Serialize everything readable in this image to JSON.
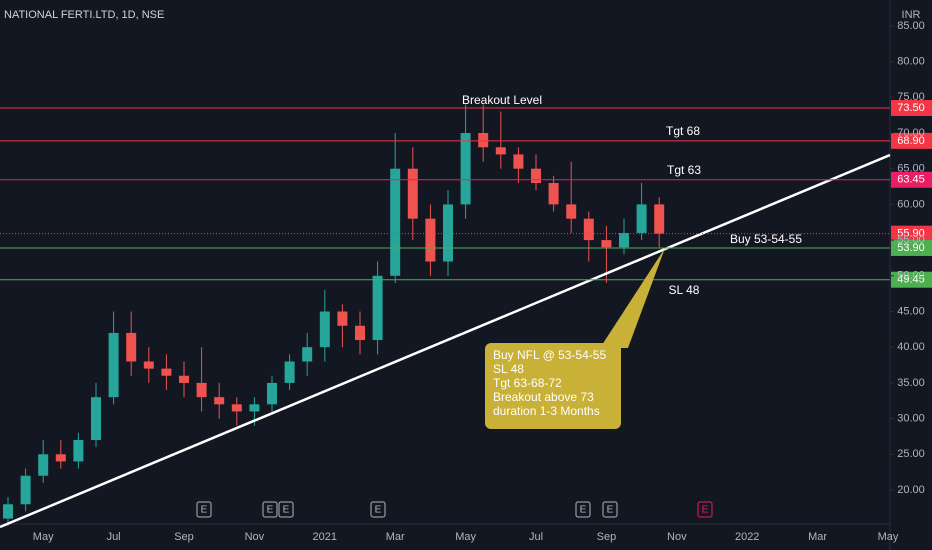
{
  "chart_data": {
    "type": "candlestick",
    "title": "NATIONAL FERTI.LTD, 1D, NSE",
    "currency": "INR",
    "categories": [
      null,
      null,
      "May",
      null,
      null,
      null,
      "Jul",
      null,
      null,
      null,
      "Sep",
      null,
      null,
      null,
      "Nov",
      null,
      null,
      null,
      "2021",
      null,
      null,
      null,
      "Mar",
      null,
      null,
      null,
      "May",
      null,
      null,
      null,
      "Jul",
      null,
      null,
      null,
      "Sep",
      null,
      null,
      null,
      "Nov",
      null,
      null,
      null,
      "2022",
      null,
      null,
      null,
      "Mar",
      null,
      null,
      null,
      "May",
      null
    ],
    "open": [
      16,
      18,
      22,
      25,
      24,
      27,
      33,
      42,
      38,
      37,
      36,
      35,
      33,
      32,
      31,
      32,
      35,
      38,
      40,
      45,
      43,
      41,
      50,
      65,
      58,
      52,
      60,
      70,
      68,
      67,
      65,
      63,
      60,
      58,
      55,
      54,
      56,
      60,
      null,
      null,
      null,
      null,
      null,
      null,
      null,
      null,
      null,
      null,
      null,
      null,
      null,
      null
    ],
    "high": [
      19,
      23,
      27,
      27,
      28,
      35,
      45,
      45,
      40,
      39,
      38,
      40,
      35,
      33,
      33,
      36,
      39,
      42,
      48,
      46,
      45,
      52,
      70,
      68,
      60,
      62,
      74,
      74,
      73,
      68,
      67,
      64,
      66,
      59,
      57,
      58,
      63,
      61,
      null,
      null,
      null,
      null,
      null,
      null,
      null,
      null,
      null,
      null,
      null,
      null,
      null,
      null
    ],
    "low": [
      15,
      17,
      21,
      23,
      23,
      26,
      32,
      36,
      35,
      34,
      33,
      31,
      30,
      29,
      29,
      31,
      34,
      36,
      38,
      40,
      39,
      39,
      49,
      55,
      50,
      50,
      58,
      66,
      65,
      63,
      62,
      59,
      56,
      52,
      49,
      53,
      55,
      54,
      null,
      null,
      null,
      null,
      null,
      null,
      null,
      null,
      null,
      null,
      null,
      null,
      null,
      null
    ],
    "close": [
      18,
      22,
      25,
      24,
      27,
      33,
      42,
      38,
      37,
      36,
      35,
      33,
      32,
      31,
      32,
      35,
      38,
      40,
      45,
      43,
      41,
      50,
      65,
      58,
      52,
      60,
      70,
      68,
      67,
      65,
      63,
      60,
      58,
      55,
      54,
      56,
      60,
      55.9,
      null,
      null,
      null,
      null,
      null,
      null,
      null,
      null,
      null,
      null,
      null,
      null,
      null,
      null
    ],
    "up_color": "#26a69a",
    "down_color": "#ef5350",
    "ylim": [
      15,
      87
    ],
    "yticks": [
      {
        "value": 20,
        "label": "20.00"
      },
      {
        "value": 25,
        "label": "25.00"
      },
      {
        "value": 30,
        "label": "30.00"
      },
      {
        "value": 35,
        "label": "35.00"
      },
      {
        "value": 40,
        "label": "40.00"
      },
      {
        "value": 45,
        "label": "45.00"
      },
      {
        "value": 50,
        "label": "50.00"
      },
      {
        "value": 55,
        "label": "55.00"
      },
      {
        "value": 60,
        "label": "60.00"
      },
      {
        "value": 65,
        "label": "65.00"
      },
      {
        "value": 70,
        "label": "70.00"
      },
      {
        "value": 75,
        "label": "75.00"
      },
      {
        "value": 80,
        "label": "80.00"
      },
      {
        "value": 85,
        "label": "85.00"
      }
    ],
    "levels": [
      {
        "value": 73.5,
        "label": "73.50",
        "color": "#f23645",
        "note": "Breakout Level"
      },
      {
        "value": 68.9,
        "label": "68.90",
        "color": "#f23645",
        "note": "Tgt 68"
      },
      {
        "value": 63.45,
        "label": "63.45",
        "color": "#e91e63",
        "note": "Tgt 63"
      },
      {
        "value": 55.9,
        "label": "55.90",
        "color": "#f23645",
        "dotted": true
      },
      {
        "value": 53.9,
        "label": "53.90",
        "color": "#4caf50",
        "note": "Buy 53-54-55"
      },
      {
        "value": 49.45,
        "label": "49.45",
        "color": "#4caf50",
        "note": "SL 48"
      }
    ],
    "callout": [
      "Buy NFL @ 53-54-55",
      "SL 48",
      "Tgt 63-68-72",
      "Breakout above 73",
      "duration 1-3 Months"
    ],
    "events": [
      "E",
      "E",
      "E",
      "E",
      "E",
      "E",
      "E"
    ]
  }
}
